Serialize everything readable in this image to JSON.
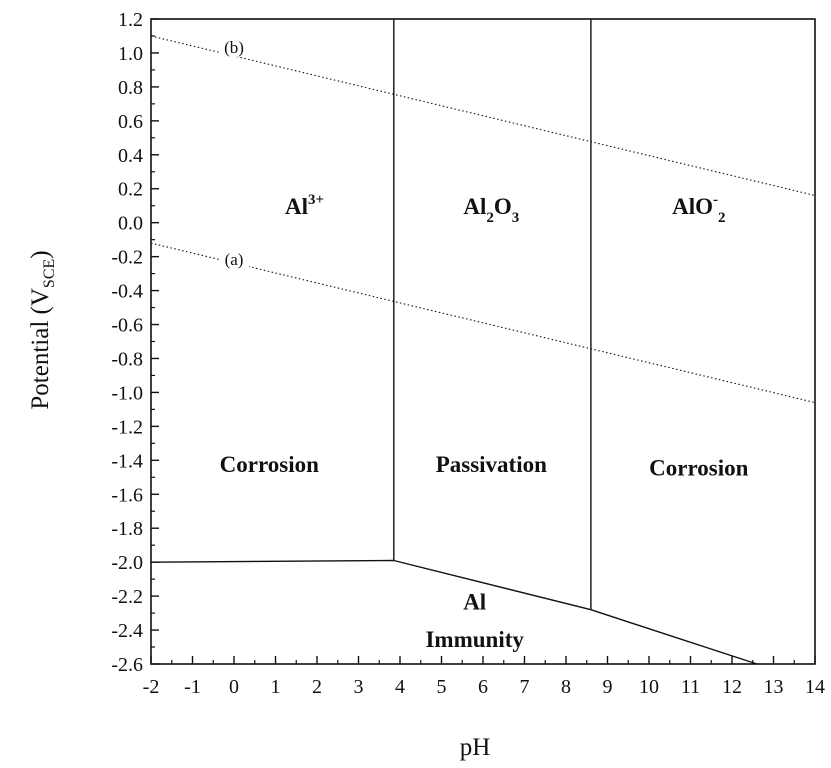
{
  "chart_data": {
    "type": "line",
    "xlabel": "pH",
    "ylabel": "Potential (V",
    "ylabel_sub": "SCE",
    "ylabel_close": ")",
    "xlim": [
      -2,
      14
    ],
    "ylim": [
      -2.6,
      1.2
    ],
    "x_ticks": [
      -2,
      -1,
      0,
      1,
      2,
      3,
      4,
      5,
      6,
      7,
      8,
      9,
      10,
      11,
      12,
      13,
      14
    ],
    "y_ticks": [
      1.2,
      1.0,
      0.8,
      0.6,
      0.4,
      0.2,
      0.0,
      -0.2,
      -0.4,
      -0.6,
      -0.8,
      -1.0,
      -1.2,
      -1.4,
      -1.6,
      -1.8,
      -2.0,
      -2.2,
      -2.4,
      -2.6
    ],
    "x_tick_labels": [
      "-2",
      "-1",
      "0",
      "1",
      "2",
      "3",
      "4",
      "5",
      "6",
      "7",
      "8",
      "9",
      "10",
      "11",
      "12",
      "13",
      "14"
    ],
    "y_tick_labels": [
      "1.2",
      "1.0",
      "0.8",
      "0.6",
      "0.4",
      "0.2",
      "0.0",
      "-0.2",
      "-0.4",
      "-0.6",
      "-0.8",
      "-1.0",
      "-1.2",
      "-1.4",
      "-1.6",
      "-1.8",
      "-2.0",
      "-2.2",
      "-2.4",
      "-2.6"
    ],
    "grid": false,
    "series": [
      {
        "name": "(b)",
        "style": "dotted",
        "x": [
          -2,
          14
        ],
        "y": [
          1.1,
          0.16
        ]
      },
      {
        "name": "(a)",
        "style": "dotted",
        "x": [
          -2,
          14
        ],
        "y": [
          -0.12,
          -1.06
        ]
      },
      {
        "style": "solid",
        "x": [
          -2,
          3.85
        ],
        "y": [
          -2.0,
          -1.99
        ]
      },
      {
        "style": "solid",
        "x": [
          3.85,
          3.85
        ],
        "y": [
          -1.99,
          1.2
        ]
      },
      {
        "style": "solid",
        "x": [
          8.6,
          8.6
        ],
        "y": [
          -2.28,
          1.2
        ]
      },
      {
        "style": "solid",
        "x": [
          3.85,
          8.6,
          12.6
        ],
        "y": [
          -1.99,
          -2.28,
          -2.6
        ]
      }
    ],
    "line_labels": [
      {
        "text": "(b)",
        "x": 0,
        "y": 1.0
      },
      {
        "text": "(a)",
        "x": 0,
        "y": -0.25
      }
    ],
    "regions": [
      {
        "text": "Al",
        "sup": "3+",
        "x": 1.7,
        "y": 0.05
      },
      {
        "parts": [
          {
            "t": "Al"
          },
          {
            "t": "2",
            "s": "sub"
          },
          {
            "t": "O"
          },
          {
            "t": "3",
            "s": "sub"
          }
        ],
        "x": 6.2,
        "y": 0.05
      },
      {
        "parts": [
          {
            "t": "AlO"
          },
          {
            "t": "-",
            "s": "sup"
          },
          {
            "t": "2",
            "s": "sub"
          }
        ],
        "x": 11.2,
        "y": 0.05
      },
      {
        "text": "Corrosion",
        "x": 0.85,
        "y": -1.47
      },
      {
        "text": "Passivation",
        "x": 6.2,
        "y": -1.47
      },
      {
        "text": "Corrosion",
        "x": 11.2,
        "y": -1.49
      },
      {
        "text": "Al",
        "x": 5.8,
        "y": -2.28
      },
      {
        "text": "Immunity",
        "x": 5.8,
        "y": -2.5
      }
    ]
  }
}
